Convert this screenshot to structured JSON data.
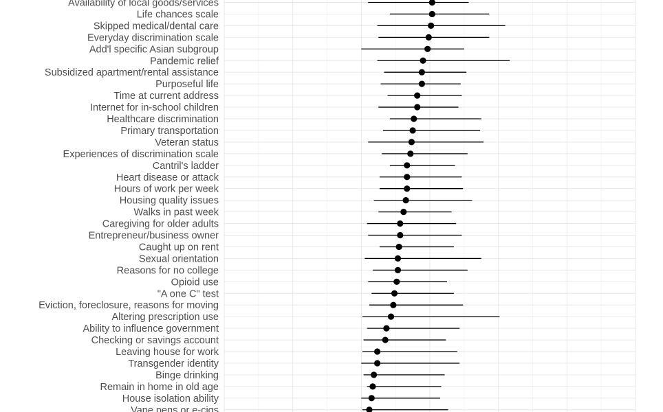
{
  "chart_data": {
    "type": "scatter",
    "subtype": "forest-plot",
    "title": "",
    "xlabel": "",
    "ylabel": "",
    "grid": true,
    "legend": "none",
    "colors": {
      "point": "#000000",
      "interval": "#000000",
      "grid": "#e6e6e6",
      "label": "#4d4d4d"
    },
    "xlim": [
      -0.45,
      1.35
    ],
    "categories": [
      "Availability of local goods/services",
      "Life chances scale",
      "Skipped medical/dental care",
      "Everyday discrimination scale",
      "Add'l specific Asian subgroup",
      "Pandemic relief",
      "Subsidized apartment/rental assistance",
      "Purposeful life",
      "Time at current address",
      "Internet for in-school children",
      "Healthcare discrimination",
      "Primary transportation",
      "Veteran status",
      "Experiences of discrimination scale",
      "Cantril's ladder",
      "Heart disease or attack",
      "Hours of work per week",
      "Housing quality issues",
      "Walks in past week",
      "Caregiving for older adults",
      "Entrepreneur/business owner",
      "Caught up on rent",
      "Sexual orientation",
      "Reasons for no college",
      "Opioid use",
      "\"A one C\" test",
      "Eviction, foreclosure, reasons for moving",
      "Altering prescription use",
      "Ability to influence government",
      "Checking or savings account",
      "Leaving house for work",
      "Transgender identity",
      "Binge drinking",
      "Remain in home in old age",
      "House isolation ability",
      "Vape pens or e-cigs"
    ],
    "estimate": [
      0.46,
      0.46,
      0.455,
      0.445,
      0.44,
      0.42,
      0.415,
      0.415,
      0.395,
      0.395,
      0.38,
      0.375,
      0.37,
      0.365,
      0.35,
      0.35,
      0.35,
      0.345,
      0.335,
      0.32,
      0.32,
      0.315,
      0.31,
      0.31,
      0.305,
      0.295,
      0.29,
      0.28,
      0.26,
      0.255,
      0.22,
      0.22,
      0.205,
      0.2,
      0.195,
      0.185
    ],
    "lower": [
      0.18,
      0.275,
      0.22,
      0.225,
      0.15,
      0.22,
      0.25,
      0.235,
      0.265,
      0.225,
      0.275,
      0.245,
      0.18,
      0.24,
      0.275,
      0.23,
      0.23,
      0.205,
      0.225,
      0.175,
      0.18,
      0.23,
      0.165,
      0.2,
      0.18,
      0.195,
      0.185,
      0.155,
      0.175,
      0.16,
      0.155,
      0.15,
      0.16,
      0.175,
      0.15,
      0.155
    ],
    "upper": [
      0.62,
      0.71,
      0.78,
      0.71,
      0.6,
      0.8,
      0.61,
      0.585,
      0.59,
      0.575,
      0.675,
      0.67,
      0.685,
      0.615,
      0.56,
      0.59,
      0.595,
      0.635,
      0.545,
      0.565,
      0.59,
      0.555,
      0.675,
      0.615,
      0.525,
      0.555,
      0.595,
      0.755,
      0.58,
      0.52,
      0.57,
      0.58,
      0.515,
      0.5,
      0.495,
      0.53
    ]
  }
}
